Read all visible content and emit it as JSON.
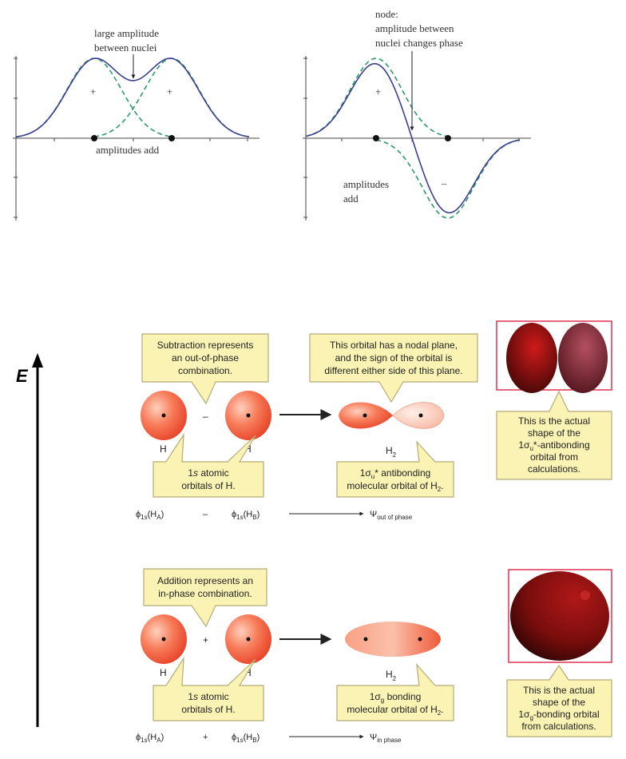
{
  "colors": {
    "combined_curve": "#3b3f8f",
    "component_curve": "#2a9a6a",
    "orbital": "#f06040",
    "callout_fill": "#fbf3b4",
    "frame": "#e03050",
    "calc_orbital": "#8a1010"
  },
  "top_plots": {
    "left": {
      "annotation": [
        "large amplitude",
        "between nuclei"
      ],
      "signs": [
        "+",
        "+"
      ],
      "label": "amplitudes add"
    },
    "right": {
      "annotation": [
        "node:",
        "amplitude between",
        "nuclei changes phase"
      ],
      "plus": "+",
      "minus": "–",
      "label": [
        "amplitudes",
        "add"
      ]
    }
  },
  "energy_axis_label": "E",
  "antibonding": {
    "callout_combination": [
      "Subtraction represents",
      "an out-of-phase",
      "combination."
    ],
    "callout_nodal": [
      "This orbital has a nodal plane,",
      "and the sign of the orbital is",
      "different either side of this plane."
    ],
    "operator": "–",
    "atom_labels": [
      "H",
      "H"
    ],
    "molecule": {
      "main": "H",
      "sub": "2"
    },
    "callout_atomic": {
      "pre": "1",
      "italic": "s",
      "post": " atomic",
      "line2": "orbitals of H."
    },
    "callout_mo": {
      "pre": "1σ",
      "sub": "u",
      "post": "* antibonding",
      "line2": "molecular orbital of H",
      "line2_sub": "2",
      "line2_end": "."
    },
    "callout_actual": {
      "line1": "This is the actual",
      "line2": "shape of the",
      "line3_pre": "1σ",
      "line3_sub": "u",
      "line3_post": "*-antibonding",
      "line4": "orbital from",
      "line5": "calculations."
    },
    "equation": {
      "phi": "ϕ",
      "phi_sub": "1s",
      "a_open": "(H",
      "a_sub": "A",
      "close": ")",
      "operator": "–",
      "b_sub": "B",
      "psi": "Ψ",
      "psi_sub": "out of phase"
    }
  },
  "bonding": {
    "callout_combination": [
      "Addition represents an",
      "in-phase combination."
    ],
    "operator": "+",
    "atom_labels": [
      "H",
      "H"
    ],
    "molecule": {
      "main": "H",
      "sub": "2"
    },
    "callout_atomic": {
      "pre": "1",
      "italic": "s",
      "post": " atomic",
      "line2": "orbitals of H."
    },
    "callout_mo": {
      "pre": "1σ",
      "sub": "g",
      "post": " bonding",
      "line2": "molecular orbital of H",
      "line2_sub": "2",
      "line2_end": "."
    },
    "callout_actual": {
      "line1": "This is the actual",
      "line2": "shape of the",
      "line3_pre": "1σ",
      "line3_sub": "g",
      "line3_post": "-bonding orbital",
      "line4": "from calculations."
    },
    "equation": {
      "phi": "ϕ",
      "phi_sub": "1s",
      "a_open": "(H",
      "a_sub": "A",
      "close": ")",
      "operator": "+",
      "b_sub": "B",
      "psi": "Ψ",
      "psi_sub": "in phase"
    }
  }
}
